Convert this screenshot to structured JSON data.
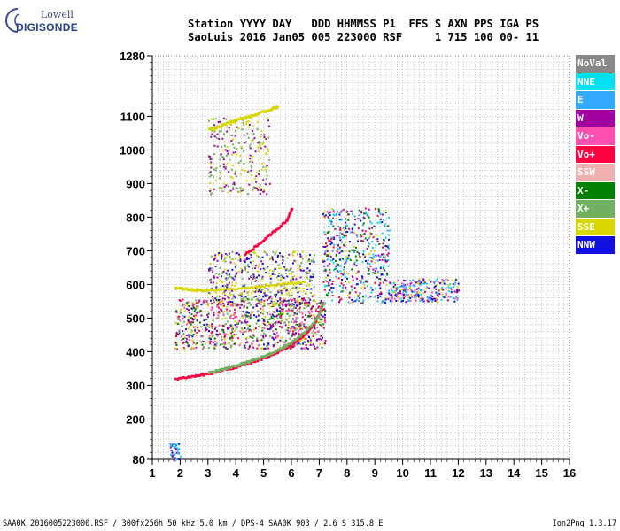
{
  "logo": {
    "line1": "Lowell",
    "line2": "DIGISONDE"
  },
  "header": {
    "line1": "Station YYYY DAY   DDD HHMMSS P1  FFS S AXN PPS IGA PS",
    "line2": "SaoLuis 2016 Jan05 005 223000 RSF     1 715 100 00- 11"
  },
  "footer": {
    "left": "SAA0K_2016005223000.RSF / 300fx256h 50 kHz 5.0 km / DPS-4 SAA0K 903 / 2.6 S 315.8 E",
    "right": "Ion2Png 1.3.17"
  },
  "legend": [
    {
      "label": "NoVal",
      "color": "#888888"
    },
    {
      "label": "NNE",
      "color": "#00e0f0"
    },
    {
      "label": "E",
      "color": "#33aaff"
    },
    {
      "label": "W",
      "color": "#a000a0"
    },
    {
      "label": "Vo-",
      "color": "#ff50b0"
    },
    {
      "label": "Vo+",
      "color": "#ff0040"
    },
    {
      "label": "SSW",
      "color": "#f0b0b0"
    },
    {
      "label": "X-",
      "color": "#008000"
    },
    {
      "label": "X+",
      "color": "#70b060"
    },
    {
      "label": "SSE",
      "color": "#d8d800"
    },
    {
      "label": "NNW",
      "color": "#1010e0"
    }
  ],
  "chart_data": {
    "type": "scatter",
    "xlim": [
      1,
      16
    ],
    "ylim": [
      80,
      1280
    ],
    "x_ticks": [
      1,
      2,
      3,
      4,
      5,
      6,
      7,
      8,
      9,
      10,
      11,
      12,
      13,
      14,
      15,
      16
    ],
    "y_ticks": [
      80,
      200,
      300,
      400,
      500,
      600,
      700,
      800,
      900,
      1000,
      1100,
      1280
    ],
    "grid": true,
    "traces": [
      {
        "series": "Vo+",
        "color": "#ff0040",
        "points": [
          [
            1.8,
            320
          ],
          [
            2.5,
            328
          ],
          [
            3.0,
            335
          ],
          [
            3.5,
            345
          ],
          [
            4.0,
            355
          ],
          [
            4.5,
            368
          ],
          [
            5.0,
            382
          ],
          [
            5.5,
            400
          ],
          [
            6.0,
            422
          ],
          [
            6.5,
            455
          ],
          [
            6.8,
            485
          ],
          [
            7.0,
            520
          ],
          [
            7.1,
            545
          ]
        ]
      },
      {
        "series": "X+",
        "color": "#70b060",
        "points": [
          [
            3.0,
            338
          ],
          [
            3.5,
            348
          ],
          [
            4.0,
            360
          ],
          [
            4.5,
            372
          ],
          [
            5.0,
            387
          ],
          [
            5.5,
            405
          ],
          [
            6.0,
            428
          ],
          [
            6.5,
            462
          ],
          [
            6.9,
            500
          ],
          [
            7.15,
            550
          ]
        ]
      },
      {
        "series": "Vo+",
        "color": "#ff0040",
        "points": [
          [
            4.3,
            690
          ],
          [
            4.8,
            720
          ],
          [
            5.3,
            755
          ],
          [
            5.8,
            790
          ],
          [
            6.0,
            830
          ]
        ]
      },
      {
        "series": "SSE",
        "color": "#d8d800",
        "points": [
          [
            3.0,
            1060
          ],
          [
            3.5,
            1075
          ],
          [
            4.0,
            1090
          ],
          [
            4.5,
            1100
          ],
          [
            5.0,
            1115
          ],
          [
            5.5,
            1130
          ]
        ]
      },
      {
        "series": "SSE",
        "color": "#d8d800",
        "points": [
          [
            1.8,
            590
          ],
          [
            2.3,
            585
          ],
          [
            2.8,
            583
          ],
          [
            3.5,
            585
          ],
          [
            4.5,
            590
          ],
          [
            5.5,
            600
          ],
          [
            6.5,
            608
          ]
        ]
      }
    ],
    "clusters": [
      {
        "x": [
          1.8,
          7.2
        ],
        "y": [
          410,
          560
        ],
        "colors": [
          "#ff50b0",
          "#d8d800",
          "#008000",
          "#a000a0",
          "#1010e0",
          "#ff0040",
          "#70b060"
        ],
        "n": 900
      },
      {
        "x": [
          3.0,
          6.8
        ],
        "y": [
          540,
          700
        ],
        "colors": [
          "#d8d800",
          "#a000a0",
          "#1010e0",
          "#70b060"
        ],
        "n": 500
      },
      {
        "x": [
          3.0,
          5.2
        ],
        "y": [
          870,
          1100
        ],
        "colors": [
          "#d8d800",
          "#70b060",
          "#a000a0"
        ],
        "n": 260
      },
      {
        "x": [
          7.1,
          9.5
        ],
        "y": [
          545,
          830
        ],
        "colors": [
          "#ff0040",
          "#1010e0",
          "#a000a0",
          "#d8d800",
          "#00e0f0",
          "#008000",
          "#33aaff"
        ],
        "n": 500
      },
      {
        "x": [
          9.5,
          12.0
        ],
        "y": [
          550,
          620
        ],
        "colors": [
          "#d8d800",
          "#a000a0",
          "#1010e0",
          "#ff50b0",
          "#00e0f0",
          "#33aaff"
        ],
        "n": 260
      },
      {
        "x": [
          1.6,
          2.0
        ],
        "y": [
          80,
          130
        ],
        "colors": [
          "#1010e0",
          "#00e0f0",
          "#33aaff",
          "#a000a0"
        ],
        "n": 40
      }
    ]
  }
}
